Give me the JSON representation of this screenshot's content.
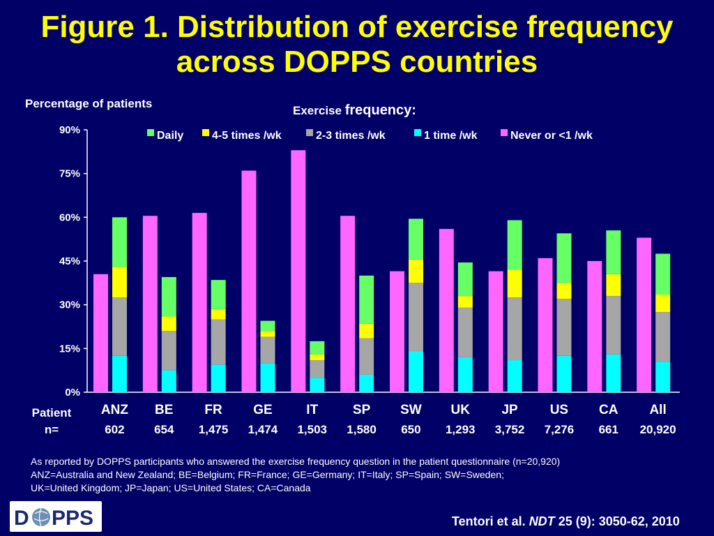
{
  "slide": {
    "title_line1": "Figure 1. Distribution of exercise frequency",
    "title_line2": "across DOPPS countries",
    "footnote_line1": "As reported by DOPPS participants who answered the exercise frequency question in the patient questionnaire (n=20,920)",
    "footnote_line2": "ANZ=Australia and New Zealand; BE=Belgium; FR=France; GE=Germany; IT=Italy; SP=Spain; SW=Sweden;",
    "footnote_line3": "UK=United Kingdom; JP=Japan; US=United States; CA=Canada",
    "citation_prefix": "Tentori et al. ",
    "citation_journal": "NDT",
    "citation_suffix": " 25 (9): 3050-62, 2010",
    "logo_text_left": "D",
    "logo_text_right": "PPS"
  },
  "chart_data": {
    "type": "bar",
    "ylabel": "Percentage of patients",
    "legend_title_a": "Exercise ",
    "legend_title_b": "frequency:",
    "legend_position": "top",
    "y_ticks": [
      "0%",
      "15%",
      "30%",
      "45%",
      "60%",
      "75%",
      "90%"
    ],
    "ylim": [
      0,
      90
    ],
    "grid": false,
    "categories": [
      "ANZ",
      "BE",
      "FR",
      "GE",
      "IT",
      "SP",
      "SW",
      "UK",
      "JP",
      "US",
      "CA",
      "All"
    ],
    "patient_label_1": "Patient",
    "patient_label_2": "n=",
    "patient_n": [
      "602",
      "654",
      "1,475",
      "1,474",
      "1,503",
      "1,580",
      "650",
      "1,293",
      "3,752",
      "7,276",
      "661",
      "20,920"
    ],
    "never_series": {
      "name": "Never or <1 /wk",
      "color": "#ff66ff",
      "values": [
        40.5,
        60.5,
        61.5,
        76,
        83,
        60.5,
        41.5,
        56,
        41.5,
        46,
        45,
        53
      ]
    },
    "stacked_series": [
      {
        "name": "1 time /wk",
        "color": "#00ffff",
        "values": [
          12.5,
          7.5,
          9.5,
          10,
          5,
          6,
          14,
          12,
          11,
          12.5,
          13,
          10.5
        ]
      },
      {
        "name": "2-3 times /wk",
        "color": "#a6a6a6",
        "values": [
          20,
          13.5,
          15.5,
          9,
          6,
          12.5,
          23.5,
          17,
          21.5,
          19.5,
          20,
          17
        ]
      },
      {
        "name": "4-5 times /wk",
        "color": "#ffff00",
        "values": [
          10.5,
          5,
          3.5,
          2,
          2,
          5,
          8,
          4,
          9.5,
          5.5,
          7.5,
          6
        ]
      },
      {
        "name": "Daily",
        "color": "#66ff66",
        "values": [
          17,
          13.5,
          10,
          3.5,
          4.5,
          16.5,
          14,
          11.5,
          17,
          17,
          15,
          14
        ]
      }
    ],
    "legend_order": [
      "Daily",
      "4-5 times /wk",
      "2-3 times /wk",
      "1 time /wk",
      "Never or <1 /wk"
    ]
  }
}
